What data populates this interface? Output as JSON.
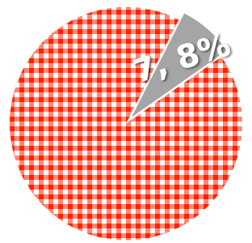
{
  "chart_data": {
    "type": "pie",
    "slices": [
      {
        "value": 7.8,
        "label": "7, 8%",
        "color": "#a5a5a5",
        "exploded": true
      },
      {
        "value": 92.2,
        "label": "",
        "color": "#ff2200",
        "pattern": "checkered"
      }
    ],
    "title": "",
    "legend": "none"
  }
}
